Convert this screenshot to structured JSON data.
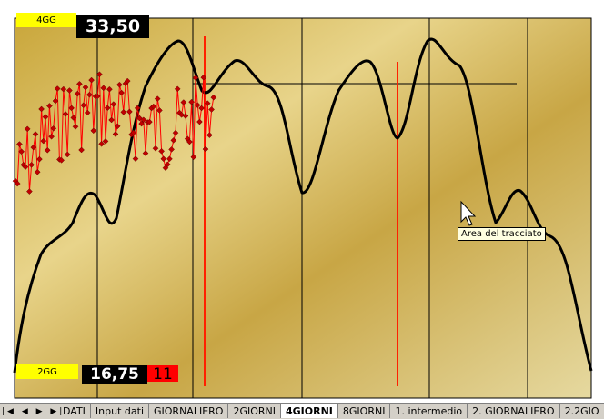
{
  "chart": {
    "label_top": "4GG",
    "value_top": "33,50",
    "label_bottom": "2GG",
    "value_bottom": "16,75",
    "value_bottom_red": "11",
    "tooltip": "Area del tracciato"
  },
  "tabs": [
    "DATI",
    "Input dati",
    "GIORNALIERO",
    "2GIORNI",
    "4GIORNI",
    "8GIORNI",
    "1. intermedio",
    "2.  GIORNALIERO",
    "2.2GIO"
  ],
  "active_tab": 4
}
